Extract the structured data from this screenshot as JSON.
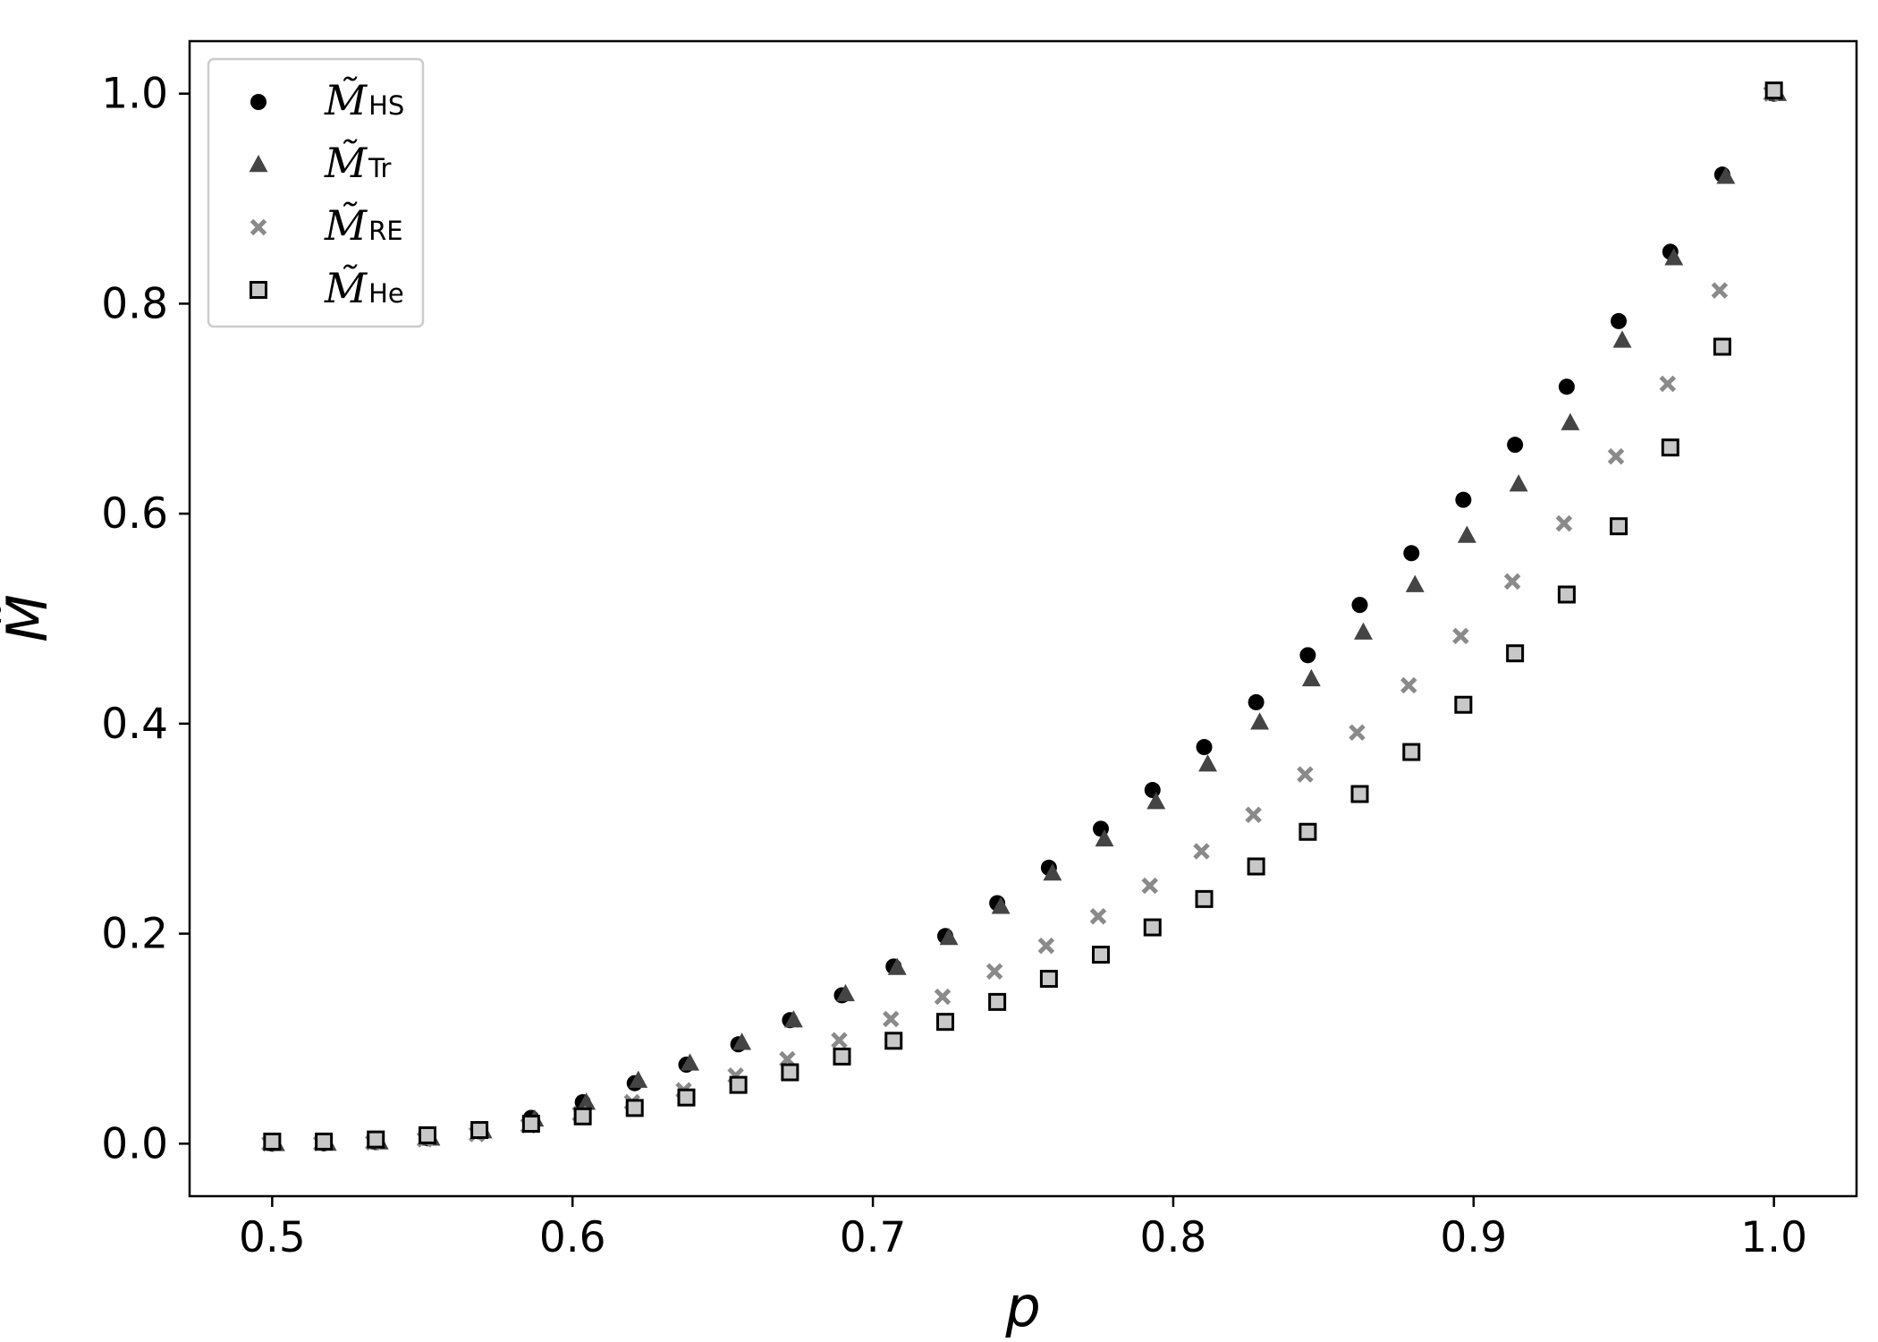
{
  "chart_data": {
    "type": "scatter",
    "xlabel": "p",
    "ylabel": "M̃",
    "xlim": [
      0.4725,
      1.0275
    ],
    "ylim": [
      -0.05,
      1.05
    ],
    "x_ticks": [
      "0.5",
      "0.6",
      "0.7",
      "0.8",
      "0.9",
      "1.0"
    ],
    "y_ticks": [
      "0.0",
      "0.2",
      "0.4",
      "0.6",
      "0.8",
      "1.0"
    ],
    "grid": false,
    "legend_position": "top-left",
    "x": [
      0.5,
      0.5172,
      0.5345,
      0.5517,
      0.569,
      0.5862,
      0.6034,
      0.6207,
      0.6379,
      0.6552,
      0.6724,
      0.6897,
      0.7069,
      0.7241,
      0.7414,
      0.7586,
      0.7759,
      0.7931,
      0.8103,
      0.8276,
      0.8448,
      0.8621,
      0.8793,
      0.8966,
      0.9138,
      0.931,
      0.9483,
      0.9655,
      0.9828,
      1.0
    ],
    "series": [
      {
        "name": "M̃",
        "subscript": "HS",
        "marker": "circle",
        "color": "#000000",
        "values": [
          0.0,
          0.0003,
          0.0015,
          0.0052,
          0.0117,
          0.0246,
          0.0395,
          0.0576,
          0.0752,
          0.0946,
          0.1176,
          0.1413,
          0.1687,
          0.1977,
          0.2291,
          0.2628,
          0.2999,
          0.3368,
          0.3777,
          0.4204,
          0.4652,
          0.5131,
          0.5624,
          0.6132,
          0.6656,
          0.7209,
          0.7834,
          0.8494,
          0.9229,
          1.0
        ]
      },
      {
        "name": "M̃",
        "subscript": "Tr",
        "marker": "triangle",
        "color": "#444444",
        "values": [
          0.0,
          0.0003,
          0.0016,
          0.0052,
          0.0121,
          0.0233,
          0.0392,
          0.0602,
          0.0766,
          0.0963,
          0.1177,
          0.1427,
          0.1677,
          0.1962,
          0.2259,
          0.2576,
          0.2901,
          0.3256,
          0.3614,
          0.4014,
          0.4426,
          0.4871,
          0.5323,
          0.5792,
          0.6281,
          0.6865,
          0.7651,
          0.8436,
          0.9211,
          1.0
        ]
      },
      {
        "name": "M̃",
        "subscript": "RE",
        "marker": "x",
        "color": "#8a8a8a",
        "values": [
          0.0,
          0.0002,
          0.0011,
          0.0041,
          0.0091,
          0.0172,
          0.0283,
          0.0395,
          0.0508,
          0.0648,
          0.0804,
          0.0985,
          0.1187,
          0.1399,
          0.1641,
          0.1885,
          0.2165,
          0.2457,
          0.2785,
          0.3132,
          0.3516,
          0.3916,
          0.4365,
          0.4835,
          0.5354,
          0.5907,
          0.6545,
          0.7237,
          0.8126,
          1.0
        ]
      },
      {
        "name": "M̃",
        "subscript": "He",
        "marker": "square",
        "color": "#c8c8c8",
        "values": [
          0.002,
          0.002,
          0.004,
          0.008,
          0.013,
          0.019,
          0.026,
          0.034,
          0.044,
          0.056,
          0.068,
          0.083,
          0.098,
          0.116,
          0.135,
          0.157,
          0.18,
          0.206,
          0.233,
          0.264,
          0.297,
          0.333,
          0.373,
          0.418,
          0.467,
          0.523,
          0.588,
          0.663,
          0.759,
          1.003
        ]
      }
    ]
  }
}
